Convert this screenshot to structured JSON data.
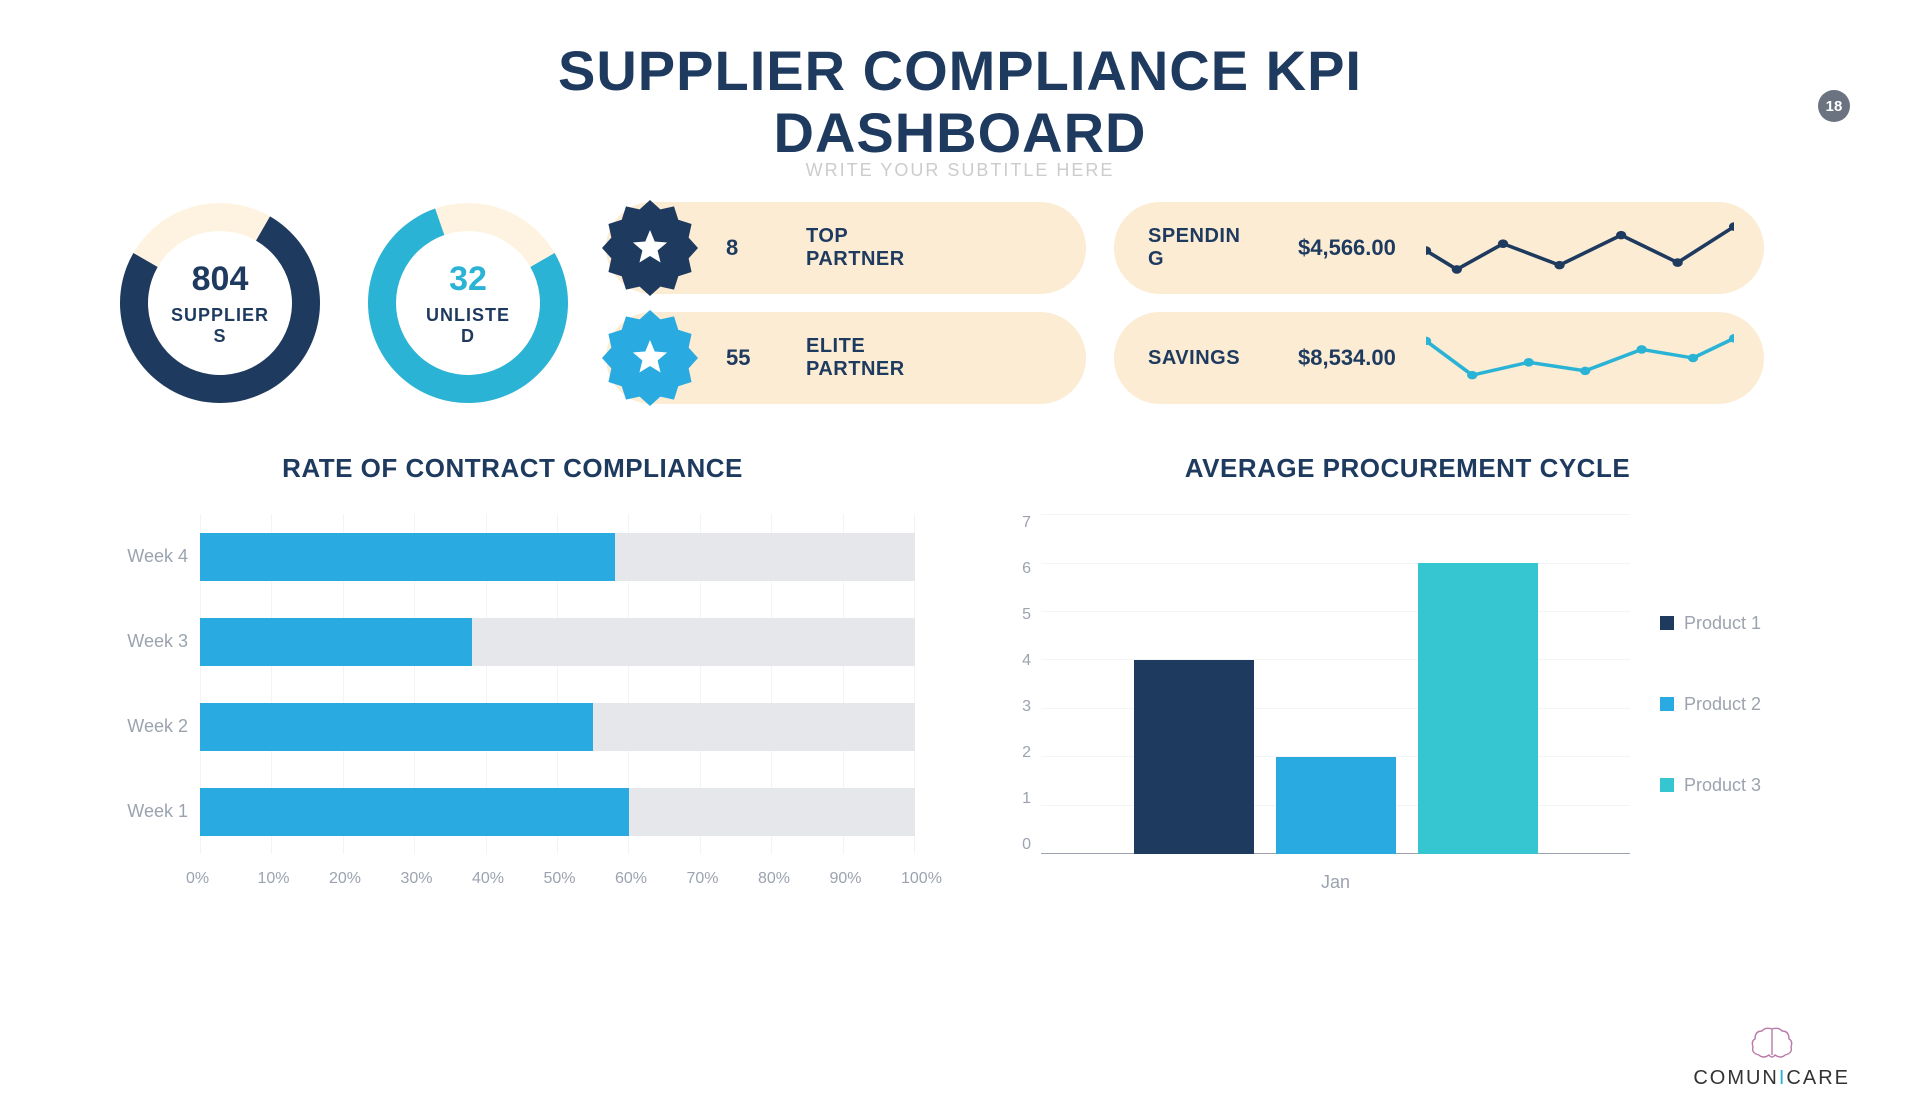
{
  "page_number": "18",
  "title_line1": "SUPPLIER COMPLIANCE KPI",
  "title_line2": "DASHBOARD",
  "subtitle_ghost": "WRITE YOUR SUBTITLE HERE",
  "colors": {
    "navy": "#1e3a5f",
    "cyan": "#2bb3d6",
    "sky": "#29abe2",
    "cream": "#fbecd3",
    "cream_light": "#fdf3e0",
    "grey_text": "#9ca3af",
    "grey_track": "#e5e7eb",
    "gridline": "#f3f4f6"
  },
  "donuts": [
    {
      "value": "804",
      "label": "SUPPLIER\nS",
      "value_color": "#1e3a5f",
      "ring_color": "#1e3a5f",
      "ring_bg": "#fdf3e0",
      "percent_filled": 75,
      "start_angle": -60,
      "thickness": 28,
      "size": 200
    },
    {
      "value": "32",
      "label": "UNLISTE\nD",
      "value_color": "#2bb3d6",
      "ring_color": "#2bb3d6",
      "ring_bg": "#fdf3e0",
      "percent_filled": 78,
      "start_angle": -30,
      "thickness": 28,
      "size": 200
    }
  ],
  "partners": [
    {
      "count": "8",
      "label": "TOP\nPARTNER",
      "badge_color": "#1e3a5f"
    },
    {
      "count": "55",
      "label": "ELITE\nPARTNER",
      "badge_color": "#29abe2"
    }
  ],
  "finance": [
    {
      "label": "SPENDIN\nG",
      "amount": "$4,566.00",
      "spark_color": "#1e3a5f",
      "spark_points": [
        0,
        38,
        30,
        60,
        75,
        30,
        130,
        55,
        190,
        20,
        245,
        52,
        300,
        10
      ]
    },
    {
      "label": "SAVINGS",
      "amount": "$8,534.00",
      "spark_color": "#2bb3d6",
      "spark_points": [
        0,
        15,
        45,
        55,
        100,
        40,
        155,
        50,
        210,
        25,
        260,
        35,
        300,
        12
      ]
    }
  ],
  "hbar_chart": {
    "title": "RATE OF CONTRACT COMPLIANCE",
    "categories": [
      "Week 4",
      "Week 3",
      "Week 2",
      "Week 1"
    ],
    "values_percent": [
      58,
      38,
      55,
      60
    ],
    "bar_color": "#29abe2",
    "track_color": "#e5e7eb",
    "xticks": [
      "0%",
      "10%",
      "20%",
      "30%",
      "40%",
      "50%",
      "60%",
      "70%",
      "80%",
      "90%",
      "100%"
    ]
  },
  "vbar_chart": {
    "title": "AVERAGE PROCUREMENT CYCLE",
    "x_label": "Jan",
    "ymax": 7,
    "yticks": [
      "7",
      "6",
      "5",
      "4",
      "3",
      "2",
      "1",
      "0"
    ],
    "bars": [
      {
        "legend": "Product 1",
        "value": 4,
        "color": "#1e3a5f"
      },
      {
        "legend": "Product 2",
        "value": 2,
        "color": "#29abe2"
      },
      {
        "legend": "Product 3",
        "value": 6,
        "color": "#36c6d1"
      }
    ]
  },
  "logo": {
    "word1": "COMUN",
    "accent": "I",
    "word2": "CARE"
  }
}
